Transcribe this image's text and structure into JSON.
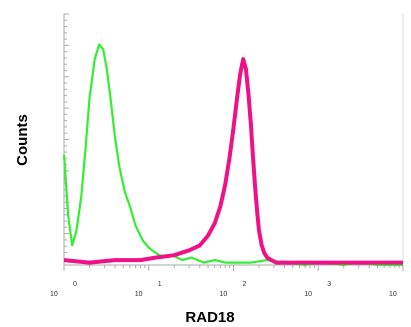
{
  "chart_data": {
    "type": "line",
    "title": "",
    "xlabel": "RAD18",
    "ylabel": "Counts",
    "x_scale": "log",
    "xlim": [
      1,
      10000
    ],
    "ylim": [
      0,
      100
    ],
    "x_tick_labels": [
      "10",
      "0",
      "10",
      "1",
      "10",
      "2",
      "10",
      "3",
      "10",
      "4"
    ],
    "grid": false,
    "series": [
      {
        "color": "#33ee33",
        "x": [
          1,
          1.12,
          1.25,
          1.4,
          1.6,
          1.8,
          2.0,
          2.3,
          2.6,
          2.9,
          3.2,
          3.6,
          4.0,
          4.5,
          5.2,
          6.0,
          7.0,
          8.5,
          10,
          12,
          15,
          19,
          25,
          32,
          45,
          60,
          80,
          110,
          160,
          250,
          400,
          700,
          1000,
          2000,
          3000,
          5000,
          10000
        ],
        "y": [
          45,
          20,
          8,
          14,
          28,
          48,
          68,
          84,
          90,
          88,
          80,
          66,
          52,
          40,
          30,
          24,
          16,
          10,
          7,
          5,
          3,
          4,
          2,
          3,
          1,
          2,
          1,
          1,
          1,
          2,
          1,
          0,
          1,
          0,
          1,
          0,
          0
        ]
      },
      {
        "color": "#ee1188",
        "x": [
          1,
          2,
          4,
          8,
          12,
          20,
          30,
          40,
          50,
          60,
          70,
          80,
          90,
          100,
          110,
          120,
          130,
          140,
          150,
          160,
          170,
          180,
          190,
          200,
          215,
          230,
          250,
          280,
          320,
          380,
          500,
          800,
          1500,
          3000,
          10000
        ],
        "y": [
          2,
          1,
          2,
          2,
          3,
          4,
          6,
          8,
          12,
          17,
          24,
          33,
          44,
          56,
          68,
          78,
          84,
          80,
          70,
          58,
          44,
          32,
          22,
          14,
          8,
          5,
          3,
          2,
          1,
          1,
          1,
          1,
          1,
          1,
          1
        ]
      }
    ]
  }
}
